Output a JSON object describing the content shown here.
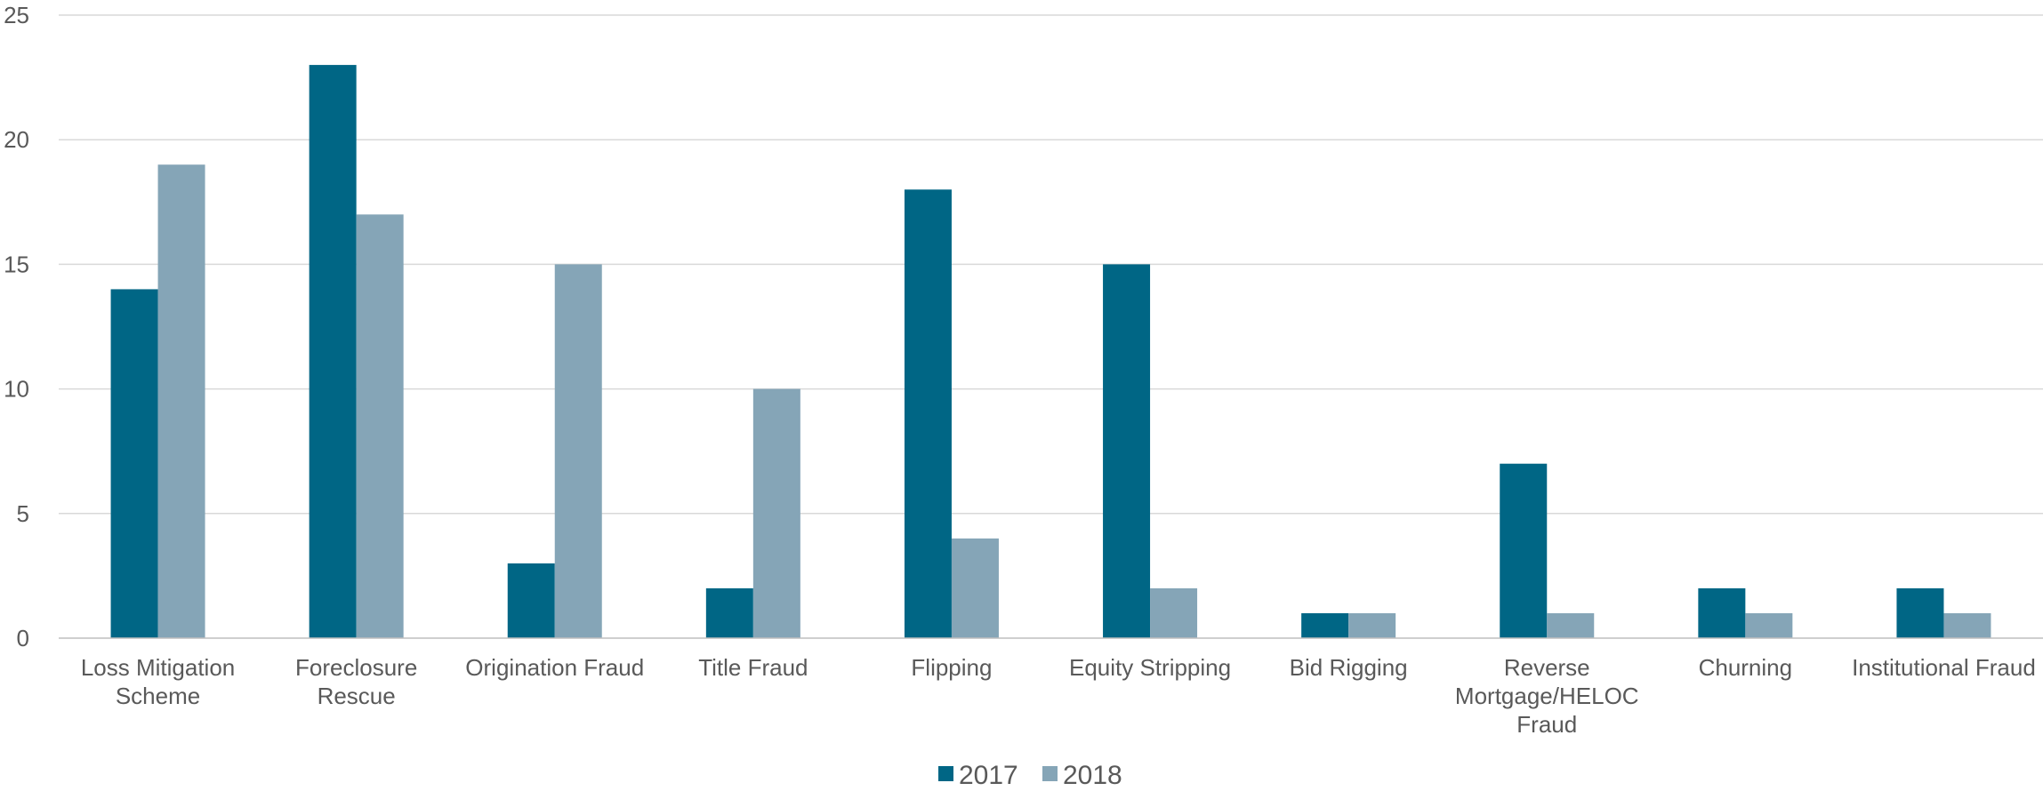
{
  "chart_data": {
    "type": "bar",
    "title": "",
    "xlabel": "",
    "ylabel": "",
    "ylim": [
      0,
      25
    ],
    "yticks": [
      0,
      5,
      10,
      15,
      20,
      25
    ],
    "grid": true,
    "legend_position": "bottom-center",
    "categories": [
      [
        "Loss Mitigation",
        "Scheme"
      ],
      [
        "Foreclosure",
        "Rescue"
      ],
      [
        "Origination Fraud"
      ],
      [
        "Title Fraud"
      ],
      [
        "Flipping"
      ],
      [
        "Equity Stripping"
      ],
      [
        "Bid Rigging"
      ],
      [
        "Reverse",
        "Mortgage/HELOC",
        "Fraud"
      ],
      [
        "Churning"
      ],
      [
        "Institutional Fraud"
      ]
    ],
    "series": [
      {
        "name": "2017",
        "color": "#006685",
        "values": [
          14,
          23,
          3,
          2,
          18,
          15,
          1,
          7,
          2,
          2
        ]
      },
      {
        "name": "2018",
        "color": "#85a5b7",
        "values": [
          19,
          17,
          15,
          10,
          4,
          2,
          1,
          1,
          1,
          1
        ]
      }
    ]
  }
}
